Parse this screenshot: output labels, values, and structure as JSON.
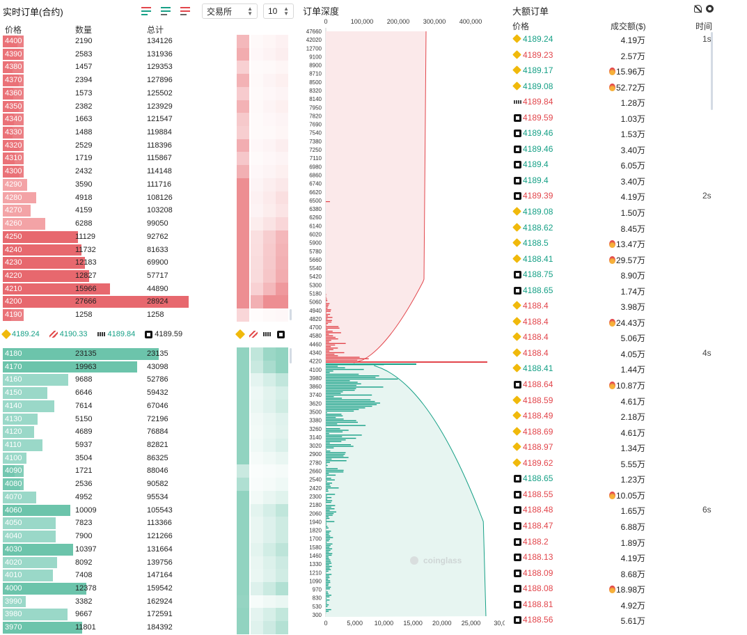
{
  "orderbook": {
    "title": "实时订单(合约)",
    "exchange_select": "交易所",
    "depth_select": "10",
    "headers": {
      "price": "价格",
      "qty": "数量",
      "total": "总计"
    },
    "asks": [
      {
        "price": "4400",
        "qty": "2190",
        "total": "134126"
      },
      {
        "price": "4390",
        "qty": "2583",
        "total": "131936"
      },
      {
        "price": "4380",
        "qty": "1457",
        "total": "129353"
      },
      {
        "price": "4370",
        "qty": "2394",
        "total": "127896"
      },
      {
        "price": "4360",
        "qty": "1573",
        "total": "125502"
      },
      {
        "price": "4350",
        "qty": "2382",
        "total": "123929"
      },
      {
        "price": "4340",
        "qty": "1663",
        "total": "121547"
      },
      {
        "price": "4330",
        "qty": "1488",
        "total": "119884"
      },
      {
        "price": "4320",
        "qty": "2529",
        "total": "118396"
      },
      {
        "price": "4310",
        "qty": "1719",
        "total": "115867"
      },
      {
        "price": "4300",
        "qty": "2432",
        "total": "114148"
      },
      {
        "price": "4290",
        "qty": "3590",
        "total": "111716"
      },
      {
        "price": "4280",
        "qty": "4918",
        "total": "108126"
      },
      {
        "price": "4270",
        "qty": "4159",
        "total": "103208"
      },
      {
        "price": "4260",
        "qty": "6288",
        "total": "99050"
      },
      {
        "price": "4250",
        "qty": "11129",
        "total": "92762"
      },
      {
        "price": "4240",
        "qty": "11732",
        "total": "81633"
      },
      {
        "price": "4230",
        "qty": "12183",
        "total": "69900"
      },
      {
        "price": "4220",
        "qty": "12827",
        "total": "57717"
      },
      {
        "price": "4210",
        "qty": "15966",
        "total": "44890"
      },
      {
        "price": "4200",
        "qty": "27666",
        "total": "28924"
      },
      {
        "price": "4190",
        "qty": "1258",
        "total": "1258"
      }
    ],
    "bids": [
      {
        "price": "4180",
        "qty": "23135",
        "total": "23135"
      },
      {
        "price": "4170",
        "qty": "19963",
        "total": "43098"
      },
      {
        "price": "4160",
        "qty": "9688",
        "total": "52786"
      },
      {
        "price": "4150",
        "qty": "6646",
        "total": "59432"
      },
      {
        "price": "4140",
        "qty": "7614",
        "total": "67046"
      },
      {
        "price": "4130",
        "qty": "5150",
        "total": "72196"
      },
      {
        "price": "4120",
        "qty": "4689",
        "total": "76884"
      },
      {
        "price": "4110",
        "qty": "5937",
        "total": "82821"
      },
      {
        "price": "4100",
        "qty": "3504",
        "total": "86325"
      },
      {
        "price": "4090",
        "qty": "1721",
        "total": "88046"
      },
      {
        "price": "4080",
        "qty": "2536",
        "total": "90582"
      },
      {
        "price": "4070",
        "qty": "4952",
        "total": "95534"
      },
      {
        "price": "4060",
        "qty": "10009",
        "total": "105543"
      },
      {
        "price": "4050",
        "qty": "7823",
        "total": "113366"
      },
      {
        "price": "4040",
        "qty": "7900",
        "total": "121266"
      },
      {
        "price": "4030",
        "qty": "10397",
        "total": "131664"
      },
      {
        "price": "4020",
        "qty": "8092",
        "total": "139756"
      },
      {
        "price": "4010",
        "qty": "7408",
        "total": "147164"
      },
      {
        "price": "4000",
        "qty": "12378",
        "total": "159542"
      },
      {
        "price": "3990",
        "qty": "3382",
        "total": "162924"
      },
      {
        "price": "3980",
        "qty": "9667",
        "total": "172591"
      },
      {
        "price": "3970",
        "qty": "11801",
        "total": "184392"
      }
    ],
    "mid_prices": [
      {
        "exchange": "binance",
        "value": "4189.24",
        "dir": "up"
      },
      {
        "exchange": "bitget",
        "value": "4190.33",
        "dir": "up"
      },
      {
        "exchange": "bybit",
        "value": "4189.84",
        "dir": "up"
      },
      {
        "exchange": "okx",
        "value": "4189.59",
        "dir": "neutral"
      }
    ]
  },
  "depth": {
    "title": "订单深度",
    "top_axis_ticks": [
      "0",
      "100,000",
      "200,000",
      "300,000",
      "400,000"
    ],
    "bottom_axis_ticks": [
      "0",
      "5,000",
      "10,000",
      "15,000",
      "20,000",
      "25,000",
      "30,0"
    ],
    "price_ticks": [
      "47660",
      "42020",
      "12700",
      "9100",
      "8900",
      "8710",
      "8500",
      "8320",
      "8140",
      "7950",
      "7820",
      "7690",
      "7540",
      "7380",
      "7250",
      "7110",
      "6980",
      "6860",
      "6740",
      "6620",
      "6500",
      "6380",
      "6260",
      "6140",
      "6020",
      "5900",
      "5780",
      "5660",
      "5540",
      "5420",
      "5300",
      "5180",
      "5060",
      "4940",
      "4820",
      "4700",
      "4580",
      "4460",
      "4340",
      "4220",
      "4100",
      "3980",
      "3860",
      "3740",
      "3620",
      "3500",
      "3380",
      "3260",
      "3140",
      "3020",
      "2900",
      "2780",
      "2660",
      "2540",
      "2420",
      "2300",
      "2180",
      "2060",
      "1940",
      "1820",
      "1700",
      "1580",
      "1460",
      "1330",
      "1210",
      "1090",
      "970",
      "830",
      "530",
      "300"
    ],
    "watermark": "coinglass",
    "colors": {
      "ask": "#e2454b",
      "bid": "#16a086"
    }
  },
  "large_orders": {
    "title": "大额订单",
    "headers": {
      "price": "价格",
      "amount": "成交额($)",
      "time": "时间"
    },
    "rows": [
      {
        "ex": "binance",
        "price": "4189.24",
        "dir": "up",
        "amount": "4.19万",
        "fire": false,
        "time": "1s"
      },
      {
        "ex": "binance",
        "price": "4189.23",
        "dir": "down",
        "amount": "2.57万",
        "fire": false,
        "time": ""
      },
      {
        "ex": "binance",
        "price": "4189.17",
        "dir": "up",
        "amount": "15.96万",
        "fire": true,
        "time": ""
      },
      {
        "ex": "binance",
        "price": "4189.08",
        "dir": "up",
        "amount": "52.72万",
        "fire": true,
        "time": ""
      },
      {
        "ex": "bybit",
        "price": "4189.84",
        "dir": "down",
        "amount": "1.28万",
        "fire": false,
        "time": ""
      },
      {
        "ex": "okx",
        "price": "4189.59",
        "dir": "down",
        "amount": "1.03万",
        "fire": false,
        "time": ""
      },
      {
        "ex": "okx",
        "price": "4189.46",
        "dir": "up",
        "amount": "1.53万",
        "fire": false,
        "time": ""
      },
      {
        "ex": "okx",
        "price": "4189.46",
        "dir": "up",
        "amount": "3.40万",
        "fire": false,
        "time": ""
      },
      {
        "ex": "okx",
        "price": "4189.4",
        "dir": "up",
        "amount": "6.05万",
        "fire": false,
        "time": ""
      },
      {
        "ex": "okx",
        "price": "4189.4",
        "dir": "up",
        "amount": "3.40万",
        "fire": false,
        "time": ""
      },
      {
        "ex": "okx",
        "price": "4189.39",
        "dir": "down",
        "amount": "4.19万",
        "fire": false,
        "time": "2s"
      },
      {
        "ex": "binance",
        "price": "4189.08",
        "dir": "up",
        "amount": "1.50万",
        "fire": false,
        "time": ""
      },
      {
        "ex": "binance",
        "price": "4188.62",
        "dir": "up",
        "amount": "8.45万",
        "fire": false,
        "time": ""
      },
      {
        "ex": "binance",
        "price": "4188.5",
        "dir": "up",
        "amount": "13.47万",
        "fire": true,
        "time": ""
      },
      {
        "ex": "binance",
        "price": "4188.41",
        "dir": "up",
        "amount": "29.57万",
        "fire": true,
        "time": ""
      },
      {
        "ex": "okx",
        "price": "4188.75",
        "dir": "up",
        "amount": "8.90万",
        "fire": false,
        "time": ""
      },
      {
        "ex": "okx",
        "price": "4188.65",
        "dir": "up",
        "amount": "1.74万",
        "fire": false,
        "time": ""
      },
      {
        "ex": "binance",
        "price": "4188.4",
        "dir": "down",
        "amount": "3.98万",
        "fire": false,
        "time": ""
      },
      {
        "ex": "binance",
        "price": "4188.4",
        "dir": "down",
        "amount": "24.43万",
        "fire": true,
        "time": ""
      },
      {
        "ex": "binance",
        "price": "4188.4",
        "dir": "down",
        "amount": "5.06万",
        "fire": false,
        "time": ""
      },
      {
        "ex": "binance",
        "price": "4188.4",
        "dir": "down",
        "amount": "4.05万",
        "fire": false,
        "time": "4s"
      },
      {
        "ex": "binance",
        "price": "4188.41",
        "dir": "up",
        "amount": "1.44万",
        "fire": false,
        "time": ""
      },
      {
        "ex": "okx",
        "price": "4188.64",
        "dir": "down",
        "amount": "10.87万",
        "fire": true,
        "time": ""
      },
      {
        "ex": "binance",
        "price": "4188.59",
        "dir": "down",
        "amount": "4.61万",
        "fire": false,
        "time": ""
      },
      {
        "ex": "binance",
        "price": "4188.49",
        "dir": "down",
        "amount": "2.18万",
        "fire": false,
        "time": ""
      },
      {
        "ex": "binance",
        "price": "4188.69",
        "dir": "down",
        "amount": "4.61万",
        "fire": false,
        "time": ""
      },
      {
        "ex": "binance",
        "price": "4188.97",
        "dir": "down",
        "amount": "1.34万",
        "fire": false,
        "time": ""
      },
      {
        "ex": "binance",
        "price": "4189.62",
        "dir": "down",
        "amount": "5.55万",
        "fire": false,
        "time": ""
      },
      {
        "ex": "okx",
        "price": "4188.65",
        "dir": "up",
        "amount": "1.23万",
        "fire": false,
        "time": ""
      },
      {
        "ex": "okx",
        "price": "4188.55",
        "dir": "down",
        "amount": "10.05万",
        "fire": true,
        "time": ""
      },
      {
        "ex": "okx",
        "price": "4188.48",
        "dir": "down",
        "amount": "1.65万",
        "fire": false,
        "time": "6s"
      },
      {
        "ex": "okx",
        "price": "4188.47",
        "dir": "down",
        "amount": "6.88万",
        "fire": false,
        "time": ""
      },
      {
        "ex": "okx",
        "price": "4188.2",
        "dir": "down",
        "amount": "1.89万",
        "fire": false,
        "time": ""
      },
      {
        "ex": "okx",
        "price": "4188.13",
        "dir": "down",
        "amount": "4.19万",
        "fire": false,
        "time": ""
      },
      {
        "ex": "okx",
        "price": "4188.09",
        "dir": "down",
        "amount": "8.68万",
        "fire": false,
        "time": ""
      },
      {
        "ex": "okx",
        "price": "4188.08",
        "dir": "down",
        "amount": "18.98万",
        "fire": true,
        "time": ""
      },
      {
        "ex": "okx",
        "price": "4188.81",
        "dir": "down",
        "amount": "4.92万",
        "fire": false,
        "time": ""
      },
      {
        "ex": "okx",
        "price": "4188.56",
        "dir": "down",
        "amount": "5.61万",
        "fire": false,
        "time": ""
      }
    ]
  }
}
